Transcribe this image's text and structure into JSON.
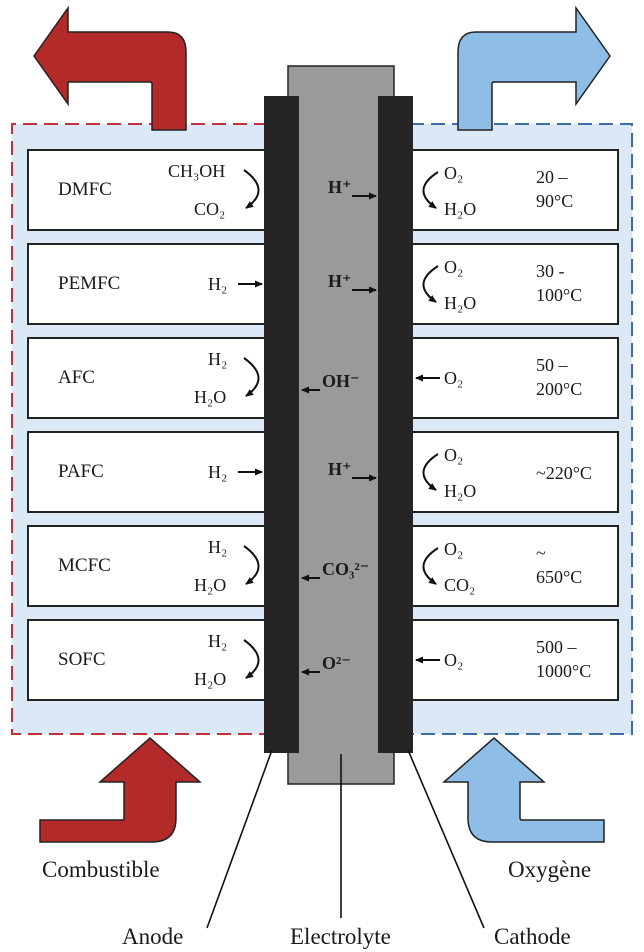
{
  "labels": {
    "combustible": "Combustible",
    "oxygene": "Oxygène",
    "anode": "Anode",
    "electrolyte": "Electrolyte",
    "cathode": "Cathode"
  },
  "colors": {
    "anode_side": "#b22a2a",
    "cathode_side": "#8ebde6",
    "background": "#dbe8f6",
    "electrode": "#252525",
    "electrolyte": "#9a9a9a"
  },
  "fuel_cells": [
    {
      "name": "DMFC",
      "anode_in": "CH₃OH",
      "anode_out": "CO₂",
      "ion": "H⁺",
      "ion_direction": "right",
      "cathode_in": "O₂",
      "cathode_out": "H₂O",
      "temp_line1": "20 –",
      "temp_line2": "90°C"
    },
    {
      "name": "PEMFC",
      "anode_in": "H₂",
      "anode_out": "",
      "ion": "H⁺",
      "ion_direction": "right",
      "cathode_in": "O₂",
      "cathode_out": "H₂O",
      "temp_line1": "30 -",
      "temp_line2": "100°C"
    },
    {
      "name": "AFC",
      "anode_in": "H₂",
      "anode_out": "H₂O",
      "ion": "OH⁻",
      "ion_direction": "left",
      "cathode_in": "O₂",
      "cathode_out": "",
      "temp_line1": "50 –",
      "temp_line2": "200°C"
    },
    {
      "name": "PAFC",
      "anode_in": "H₂",
      "anode_out": "",
      "ion": "H⁺",
      "ion_direction": "right",
      "cathode_in": "O₂",
      "cathode_out": "H₂O",
      "temp_line1": "~220°C",
      "temp_line2": ""
    },
    {
      "name": "MCFC",
      "anode_in": "H₂",
      "anode_out": "H₂O",
      "ion": "CO₃²⁻",
      "ion_direction": "left",
      "cathode_in": "O₂",
      "cathode_out": "CO₂",
      "temp_line1": "~",
      "temp_line2": "650°C"
    },
    {
      "name": "SOFC",
      "anode_in": "H₂",
      "anode_out": "H₂O",
      "ion": "O²⁻",
      "ion_direction": "left",
      "cathode_in": "O₂",
      "cathode_out": "",
      "temp_line1": "500 –",
      "temp_line2": "1000°C"
    }
  ]
}
